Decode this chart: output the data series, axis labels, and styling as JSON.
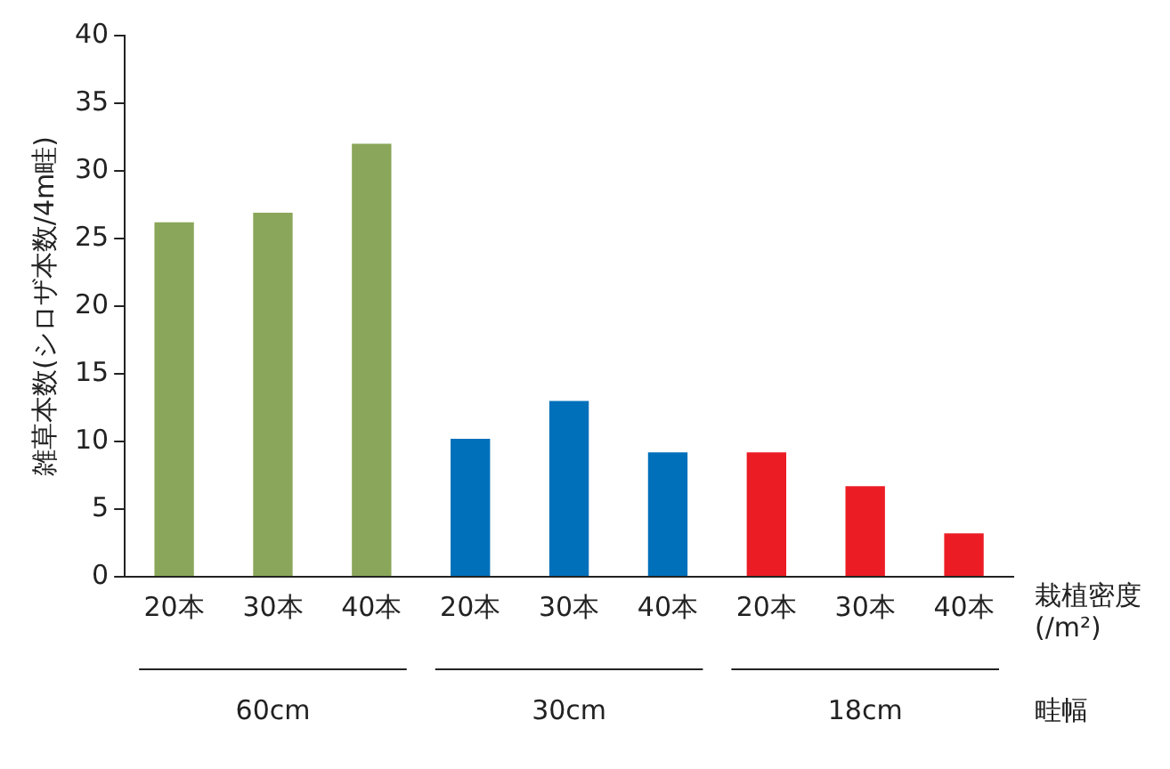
{
  "chart_data": {
    "type": "bar",
    "ylabel": "雑草本数(シロザ本数/4m畦)",
    "xlabel": "栽植密度(/m²)",
    "categories": [
      "20本",
      "30本",
      "40本",
      "20本",
      "30本",
      "40本",
      "20本",
      "30本",
      "40本"
    ],
    "values": [
      26.2,
      26.9,
      32,
      10.2,
      13,
      9.2,
      9.2,
      6.7,
      3.2
    ],
    "colors": [
      "#8aa65a",
      "#8aa65a",
      "#8aa65a",
      "#0070bb",
      "#0070bb",
      "#0070bb",
      "#ec1c24",
      "#ec1c24",
      "#ec1c24"
    ],
    "ylim": [
      0,
      40
    ],
    "yticks": [
      0,
      5,
      10,
      15,
      20,
      25,
      30,
      35,
      40
    ],
    "grid": false,
    "legend": false,
    "annotations": [
      "60cm",
      "30cm",
      "18cm",
      "畦幅"
    ]
  }
}
